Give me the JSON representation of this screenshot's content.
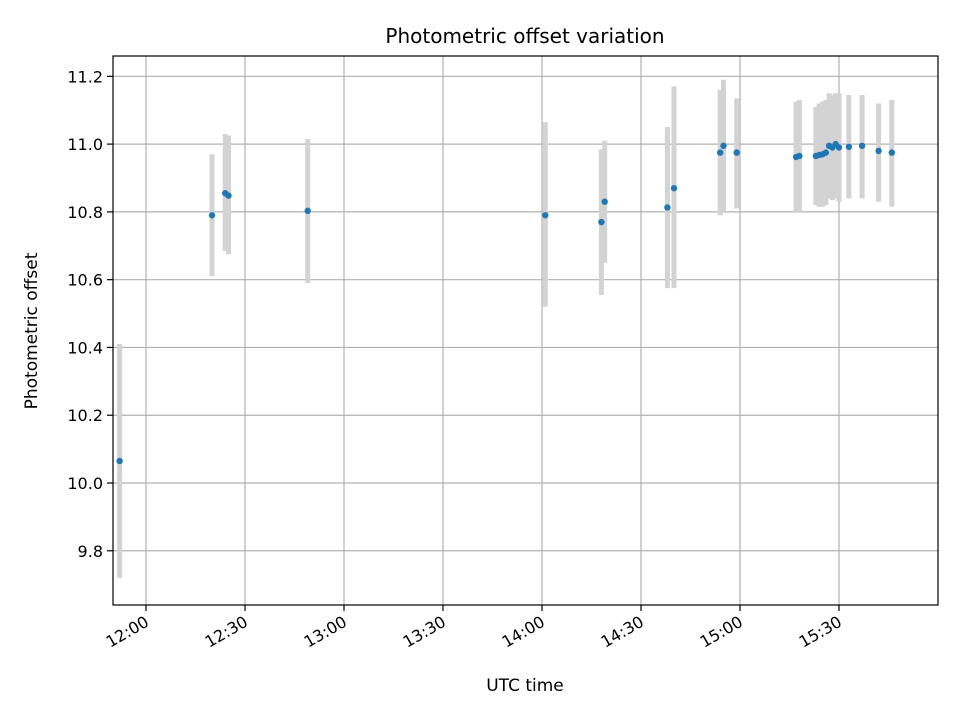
{
  "chart_data": {
    "type": "scatter",
    "title": "Photometric offset variation",
    "xlabel": "UTC time",
    "ylabel": "Photometric offset",
    "xlim": [
      "11:50",
      "16:00"
    ],
    "ylim": [
      9.64,
      11.26
    ],
    "x_ticks": [
      "12:00",
      "12:30",
      "13:00",
      "13:30",
      "14:00",
      "14:30",
      "15:00",
      "15:30"
    ],
    "y_ticks": [
      9.8,
      10.0,
      10.2,
      10.4,
      10.6,
      10.8,
      11.0,
      11.2
    ],
    "grid": true,
    "colors": {
      "point": "#1f77b4",
      "errorbar": "#d3d3d3",
      "grid": "#b0b0b0"
    },
    "points": [
      {
        "x": "11:52",
        "y": 10.065,
        "low": 9.72,
        "high": 10.41
      },
      {
        "x": "12:20",
        "y": 10.79,
        "low": 10.61,
        "high": 10.97
      },
      {
        "x": "12:24",
        "y": 10.855,
        "low": 10.685,
        "high": 11.03
      },
      {
        "x": "12:25",
        "y": 10.848,
        "low": 10.675,
        "high": 11.025
      },
      {
        "x": "12:49",
        "y": 10.803,
        "low": 10.59,
        "high": 11.015
      },
      {
        "x": "14:01",
        "y": 10.79,
        "low": 10.52,
        "high": 11.065
      },
      {
        "x": "14:18",
        "y": 10.77,
        "low": 10.555,
        "high": 10.985
      },
      {
        "x": "14:19",
        "y": 10.83,
        "low": 10.65,
        "high": 11.01
      },
      {
        "x": "14:38",
        "y": 10.813,
        "low": 10.575,
        "high": 11.05
      },
      {
        "x": "14:40",
        "y": 10.87,
        "low": 10.575,
        "high": 11.17
      },
      {
        "x": "14:54",
        "y": 10.975,
        "low": 10.79,
        "high": 11.16
      },
      {
        "x": "14:55",
        "y": 10.995,
        "low": 10.8,
        "high": 11.19
      },
      {
        "x": "14:59",
        "y": 10.975,
        "low": 10.81,
        "high": 11.135
      },
      {
        "x": "15:17",
        "y": 10.962,
        "low": 10.8,
        "high": 11.125
      },
      {
        "x": "15:18",
        "y": 10.965,
        "low": 10.8,
        "high": 11.13
      },
      {
        "x": "15:23",
        "y": 10.965,
        "low": 10.82,
        "high": 11.11
      },
      {
        "x": "15:24",
        "y": 10.968,
        "low": 10.815,
        "high": 11.12
      },
      {
        "x": "15:25",
        "y": 10.97,
        "low": 10.815,
        "high": 11.125
      },
      {
        "x": "15:26",
        "y": 10.975,
        "low": 10.82,
        "high": 11.13
      },
      {
        "x": "15:27",
        "y": 10.995,
        "low": 10.84,
        "high": 11.15
      },
      {
        "x": "15:28",
        "y": 10.99,
        "low": 10.835,
        "high": 11.145
      },
      {
        "x": "15:29",
        "y": 11.0,
        "low": 10.84,
        "high": 11.15
      },
      {
        "x": "15:30",
        "y": 10.99,
        "low": 10.83,
        "high": 11.15
      },
      {
        "x": "15:33",
        "y": 10.992,
        "low": 10.84,
        "high": 11.145
      },
      {
        "x": "15:37",
        "y": 10.995,
        "low": 10.84,
        "high": 11.145
      },
      {
        "x": "15:42",
        "y": 10.98,
        "low": 10.83,
        "high": 11.12
      },
      {
        "x": "15:46",
        "y": 10.975,
        "low": 10.815,
        "high": 11.13
      }
    ]
  }
}
